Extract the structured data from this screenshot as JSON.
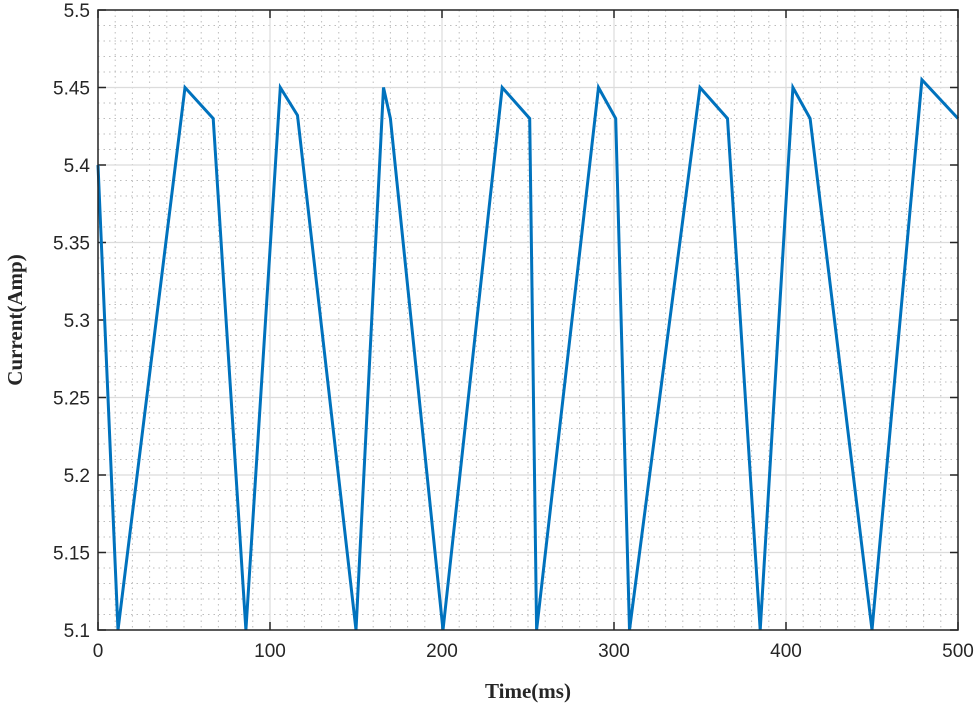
{
  "chart_data": {
    "type": "line",
    "title": "",
    "xlabel": "Time(ms)",
    "ylabel": "Current(Amp)",
    "xlim": [
      0,
      500
    ],
    "ylim": [
      5.1,
      5.5
    ],
    "xticks": [
      "0",
      "100",
      "200",
      "300",
      "400",
      "500"
    ],
    "yticks": [
      "5.1",
      "5.15",
      "5.2",
      "5.25",
      "5.3",
      "5.35",
      "5.4",
      "5.45",
      "5.5"
    ],
    "grid": {
      "major": true,
      "minor": "dotted"
    },
    "line_color": "#0072BD",
    "series": [
      {
        "x": [
          0,
          11.6,
          50.6,
          67,
          86,
          106,
          116,
          150,
          166,
          170,
          200.6,
          235,
          251,
          255,
          291,
          301,
          309,
          350,
          366,
          385,
          404,
          414,
          450,
          479,
          500
        ],
        "y": [
          5.4,
          5.1,
          5.45,
          5.43,
          5.1,
          5.45,
          5.432,
          5.1,
          5.45,
          5.43,
          5.1,
          5.45,
          5.43,
          5.1,
          5.45,
          5.43,
          5.1,
          5.45,
          5.43,
          5.1,
          5.45,
          5.43,
          5.1,
          5.455,
          5.43
        ]
      }
    ]
  }
}
